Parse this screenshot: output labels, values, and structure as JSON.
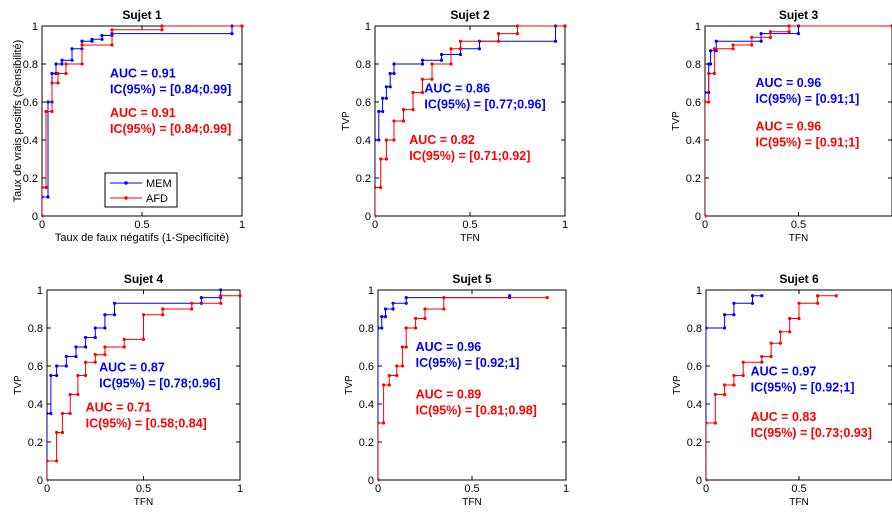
{
  "figure": {
    "caption": ""
  },
  "colors": {
    "mem": "#0000ff",
    "afd": "#ff0000",
    "axis": "#000000"
  },
  "legend": {
    "entries": [
      "MEM",
      "AFD"
    ],
    "placement": "inside-bottom of Sujet 1"
  },
  "chart_data": [
    {
      "type": "line",
      "title": "Sujet 1",
      "xlabel": "Taux de faux négatifs (1-Specificité)",
      "ylabel": "Taux de vrais positifs (Sensibilité)",
      "xlim": [
        0,
        1
      ],
      "ylim": [
        0,
        1
      ],
      "xticks": [
        "0",
        "0.5",
        "1"
      ],
      "yticks": [
        "0",
        "0.2",
        "0.4",
        "0.6",
        "0.8",
        "1"
      ],
      "grid": false,
      "legend": true,
      "series": [
        {
          "name": "MEM",
          "color": "#0000ff",
          "x": [
            0,
            0,
            0.03,
            0.03,
            0.05,
            0.05,
            0.07,
            0.07,
            0.1,
            0.1,
            0.15,
            0.15,
            0.2,
            0.2,
            0.25,
            0.25,
            0.3,
            0.3,
            0.35,
            0.35,
            0.95,
            0.95
          ],
          "y": [
            0,
            0.1,
            0.1,
            0.6,
            0.6,
            0.75,
            0.75,
            0.8,
            0.8,
            0.82,
            0.82,
            0.88,
            0.88,
            0.92,
            0.92,
            0.93,
            0.93,
            0.95,
            0.95,
            0.96,
            0.96,
            1
          ]
        },
        {
          "name": "AFD",
          "color": "#ff0000",
          "x": [
            0,
            0,
            0.02,
            0.02,
            0.05,
            0.05,
            0.08,
            0.08,
            0.12,
            0.12,
            0.2,
            0.2,
            0.35,
            0.35,
            0.6,
            0.6,
            1
          ],
          "y": [
            0,
            0.15,
            0.15,
            0.55,
            0.55,
            0.7,
            0.7,
            0.75,
            0.75,
            0.8,
            0.8,
            0.9,
            0.9,
            0.98,
            0.98,
            1,
            1
          ]
        }
      ],
      "annotations": [
        {
          "series": 0,
          "lines": [
            "AUC = 0.91",
            "IC(95%) = [0.84;0.99]"
          ]
        },
        {
          "series": 1,
          "lines": [
            "AUC = 0.91",
            "IC(95%) = [0.84;0.99]"
          ]
        }
      ]
    },
    {
      "type": "line",
      "title": "Sujet 2",
      "xlabel": "TFN",
      "ylabel": "TVP",
      "xlim": [
        0,
        1
      ],
      "ylim": [
        0,
        1
      ],
      "xticks": [
        "0",
        "0.5",
        "1"
      ],
      "yticks": [
        "0",
        "0.2",
        "0.4",
        "0.6",
        "0.8",
        "1"
      ],
      "grid": false,
      "series": [
        {
          "name": "MEM",
          "color": "#0000ff",
          "x": [
            0,
            0,
            0.02,
            0.02,
            0.04,
            0.04,
            0.06,
            0.06,
            0.08,
            0.08,
            0.1,
            0.1,
            0.25,
            0.25,
            0.35,
            0.35,
            0.45,
            0.45,
            0.55,
            0.55,
            0.95,
            0.95,
            1
          ],
          "y": [
            0,
            0.4,
            0.4,
            0.55,
            0.55,
            0.62,
            0.62,
            0.68,
            0.68,
            0.75,
            0.75,
            0.8,
            0.8,
            0.82,
            0.82,
            0.85,
            0.85,
            0.88,
            0.88,
            0.92,
            0.92,
            1,
            1
          ]
        },
        {
          "name": "AFD",
          "color": "#ff0000",
          "x": [
            0,
            0,
            0.03,
            0.03,
            0.06,
            0.06,
            0.1,
            0.1,
            0.15,
            0.15,
            0.2,
            0.2,
            0.25,
            0.25,
            0.3,
            0.3,
            0.4,
            0.4,
            0.45,
            0.45,
            0.65,
            0.65,
            0.75,
            0.75,
            1
          ],
          "y": [
            0,
            0.15,
            0.15,
            0.3,
            0.3,
            0.4,
            0.4,
            0.5,
            0.5,
            0.56,
            0.56,
            0.65,
            0.65,
            0.72,
            0.72,
            0.8,
            0.8,
            0.88,
            0.88,
            0.92,
            0.92,
            0.96,
            0.96,
            1,
            1
          ]
        }
      ],
      "annotations": [
        {
          "series": 0,
          "lines": [
            "AUC = 0.86",
            "IC(95%) = [0.77;0.96]"
          ]
        },
        {
          "series": 1,
          "lines": [
            "AUC = 0.82",
            "IC(95%) = [0.71;0.92]"
          ]
        }
      ]
    },
    {
      "type": "line",
      "title": "Sujet 3",
      "xlabel": "TFN",
      "ylabel": "TVP",
      "xlim": [
        0,
        1
      ],
      "ylim": [
        0,
        1
      ],
      "xticks": [
        "0",
        "0.5"
      ],
      "yticks": [
        "0",
        "0.2",
        "0.4",
        "0.6",
        "0.8",
        "1"
      ],
      "grid": false,
      "series": [
        {
          "name": "MEM",
          "color": "#0000ff",
          "x": [
            0,
            0,
            0.02,
            0.02,
            0.03,
            0.03,
            0.06,
            0.06,
            0.3,
            0.3,
            0.5,
            0.5
          ],
          "y": [
            0,
            0.65,
            0.65,
            0.8,
            0.8,
            0.87,
            0.87,
            0.92,
            0.92,
            0.96,
            0.96,
            1
          ]
        },
        {
          "name": "AFD",
          "color": "#ff0000",
          "x": [
            0,
            0,
            0.02,
            0.02,
            0.05,
            0.05,
            0.15,
            0.15,
            0.25,
            0.25,
            0.35,
            0.35,
            0.45,
            0.45,
            1
          ],
          "y": [
            0,
            0.6,
            0.6,
            0.75,
            0.75,
            0.88,
            0.88,
            0.9,
            0.9,
            0.94,
            0.94,
            0.97,
            0.97,
            1,
            1
          ]
        }
      ],
      "annotations": [
        {
          "series": 0,
          "lines": [
            "AUC = 0.96",
            "IC(95%) = [0.91;1]"
          ]
        },
        {
          "series": 1,
          "lines": [
            "AUC = 0.96",
            "IC(95%) = [0.91;1]"
          ]
        }
      ]
    },
    {
      "type": "line",
      "title": "Sujet 4",
      "xlabel": "TFN",
      "ylabel": "TVP",
      "xlim": [
        0,
        1
      ],
      "ylim": [
        0,
        1
      ],
      "xticks": [
        "0",
        "0.5",
        "1"
      ],
      "yticks": [
        "0",
        "0.2",
        "0.4",
        "0.6",
        "0.8",
        "1"
      ],
      "grid": false,
      "series": [
        {
          "name": "MEM",
          "color": "#0000ff",
          "x": [
            0,
            0,
            0.02,
            0.02,
            0.05,
            0.05,
            0.1,
            0.1,
            0.15,
            0.15,
            0.2,
            0.2,
            0.25,
            0.25,
            0.3,
            0.3,
            0.35,
            0.35,
            0.8,
            0.8,
            0.9,
            0.9
          ],
          "y": [
            0,
            0.35,
            0.35,
            0.55,
            0.55,
            0.6,
            0.6,
            0.65,
            0.65,
            0.7,
            0.7,
            0.75,
            0.75,
            0.8,
            0.8,
            0.87,
            0.87,
            0.93,
            0.93,
            0.96,
            0.96,
            1
          ]
        },
        {
          "name": "AFD",
          "color": "#ff0000",
          "x": [
            0,
            0,
            0.05,
            0.05,
            0.08,
            0.08,
            0.12,
            0.12,
            0.16,
            0.16,
            0.2,
            0.2,
            0.25,
            0.25,
            0.3,
            0.3,
            0.4,
            0.4,
            0.5,
            0.5,
            0.6,
            0.6,
            0.75,
            0.75,
            0.9,
            0.9,
            1
          ],
          "y": [
            0,
            0.1,
            0.1,
            0.25,
            0.25,
            0.35,
            0.35,
            0.45,
            0.45,
            0.55,
            0.55,
            0.62,
            0.62,
            0.66,
            0.66,
            0.7,
            0.7,
            0.74,
            0.74,
            0.87,
            0.87,
            0.9,
            0.9,
            0.93,
            0.93,
            0.97,
            0.97
          ]
        }
      ],
      "annotations": [
        {
          "series": 0,
          "lines": [
            "AUC = 0.87",
            "IC(95%) = [0.78;0.96]"
          ]
        },
        {
          "series": 1,
          "lines": [
            "AUC = 0.71",
            "IC(95%) = [0.58;0.84]"
          ]
        }
      ]
    },
    {
      "type": "line",
      "title": "Sujet 5",
      "xlabel": "TFN",
      "ylabel": "TVP",
      "xlim": [
        0,
        1
      ],
      "ylim": [
        0,
        1
      ],
      "xticks": [
        "0",
        "0.5",
        "1"
      ],
      "yticks": [
        "0",
        "0.2",
        "0.4",
        "0.6",
        "0.8",
        "1"
      ],
      "grid": false,
      "series": [
        {
          "name": "MEM",
          "color": "#0000ff",
          "x": [
            0,
            0,
            0.02,
            0.02,
            0.04,
            0.04,
            0.08,
            0.08,
            0.15,
            0.15,
            0.7,
            0.7
          ],
          "y": [
            0,
            0.8,
            0.8,
            0.86,
            0.86,
            0.9,
            0.9,
            0.93,
            0.93,
            0.96,
            0.96,
            0.97
          ]
        },
        {
          "name": "AFD",
          "color": "#ff0000",
          "x": [
            0,
            0,
            0.03,
            0.03,
            0.06,
            0.06,
            0.1,
            0.1,
            0.13,
            0.13,
            0.15,
            0.15,
            0.2,
            0.2,
            0.25,
            0.25,
            0.35,
            0.35,
            0.9
          ],
          "y": [
            0,
            0.3,
            0.3,
            0.5,
            0.5,
            0.55,
            0.55,
            0.6,
            0.6,
            0.7,
            0.7,
            0.8,
            0.8,
            0.85,
            0.85,
            0.9,
            0.9,
            0.96,
            0.96
          ]
        }
      ],
      "annotations": [
        {
          "series": 0,
          "lines": [
            "AUC = 0.96",
            "IC(95%) = [0.92;1]"
          ]
        },
        {
          "series": 1,
          "lines": [
            "AUC = 0.89",
            "IC(95%) = [0.81;0.98]"
          ]
        }
      ]
    },
    {
      "type": "line",
      "title": "Sujet 6",
      "xlabel": "TFN",
      "ylabel": "TVP",
      "xlim": [
        0,
        1
      ],
      "ylim": [
        0,
        1
      ],
      "xticks": [
        "0",
        "0.5"
      ],
      "yticks": [
        "0",
        "0.2",
        "0.4",
        "0.6",
        "0.8",
        "1"
      ],
      "grid": false,
      "series": [
        {
          "name": "MEM",
          "color": "#0000ff",
          "x": [
            0,
            0,
            0.1,
            0.1,
            0.15,
            0.15,
            0.25,
            0.25,
            0.3
          ],
          "y": [
            0,
            0.8,
            0.8,
            0.87,
            0.87,
            0.93,
            0.93,
            0.97,
            0.97
          ]
        },
        {
          "name": "AFD",
          "color": "#ff0000",
          "x": [
            0,
            0,
            0.05,
            0.05,
            0.1,
            0.1,
            0.15,
            0.15,
            0.2,
            0.2,
            0.3,
            0.3,
            0.35,
            0.35,
            0.4,
            0.4,
            0.45,
            0.45,
            0.5,
            0.5,
            0.6,
            0.6,
            0.7
          ],
          "y": [
            0,
            0.3,
            0.3,
            0.45,
            0.45,
            0.5,
            0.5,
            0.55,
            0.55,
            0.62,
            0.62,
            0.65,
            0.65,
            0.72,
            0.72,
            0.78,
            0.78,
            0.85,
            0.85,
            0.93,
            0.93,
            0.97,
            0.97
          ]
        }
      ],
      "annotations": [
        {
          "series": 0,
          "lines": [
            "AUC = 0.97",
            "IC(95%) = [0.92;1]"
          ]
        },
        {
          "series": 1,
          "lines": [
            "AUC = 0.83",
            "IC(95%) = [0.73;0.93]"
          ]
        }
      ]
    }
  ]
}
